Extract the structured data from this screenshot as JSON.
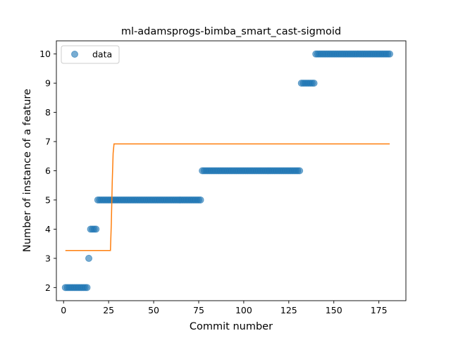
{
  "chart_data": {
    "type": "scatter",
    "title": "ml-adamsprogs-bimba_smart_cast-sigmoid",
    "xlabel": "Commit number",
    "ylabel": "Number of instance of a feature",
    "xlim": [
      -4,
      190
    ],
    "ylim": [
      1.55,
      10.45
    ],
    "xticks": [
      0,
      25,
      50,
      75,
      100,
      125,
      150,
      175
    ],
    "yticks": [
      2,
      3,
      4,
      5,
      6,
      7,
      8,
      9,
      10
    ],
    "grid": false,
    "legend": {
      "position": "top-left",
      "entries": [
        "data"
      ]
    },
    "colors": {
      "data": "#1f77b4",
      "fit": "#ff7f0e"
    },
    "series": [
      {
        "name": "data",
        "kind": "scatter",
        "segments": [
          {
            "x_start": 1,
            "x_end": 13,
            "y": 2
          },
          {
            "x_start": 14,
            "x_end": 14,
            "y": 3
          },
          {
            "x_start": 15,
            "x_end": 18,
            "y": 4
          },
          {
            "x_start": 19,
            "x_end": 76,
            "y": 5
          },
          {
            "x_start": 77,
            "x_end": 131,
            "y": 6
          },
          {
            "x_start": 132,
            "x_end": 139,
            "y": 9
          },
          {
            "x_start": 140,
            "x_end": 181,
            "y": 10
          }
        ]
      },
      {
        "kind": "line",
        "x": [
          1,
          26,
          26.5,
          27,
          27.5,
          28,
          181
        ],
        "y": [
          3.27,
          3.27,
          4.2,
          5.6,
          6.6,
          6.92,
          6.92
        ]
      }
    ]
  }
}
